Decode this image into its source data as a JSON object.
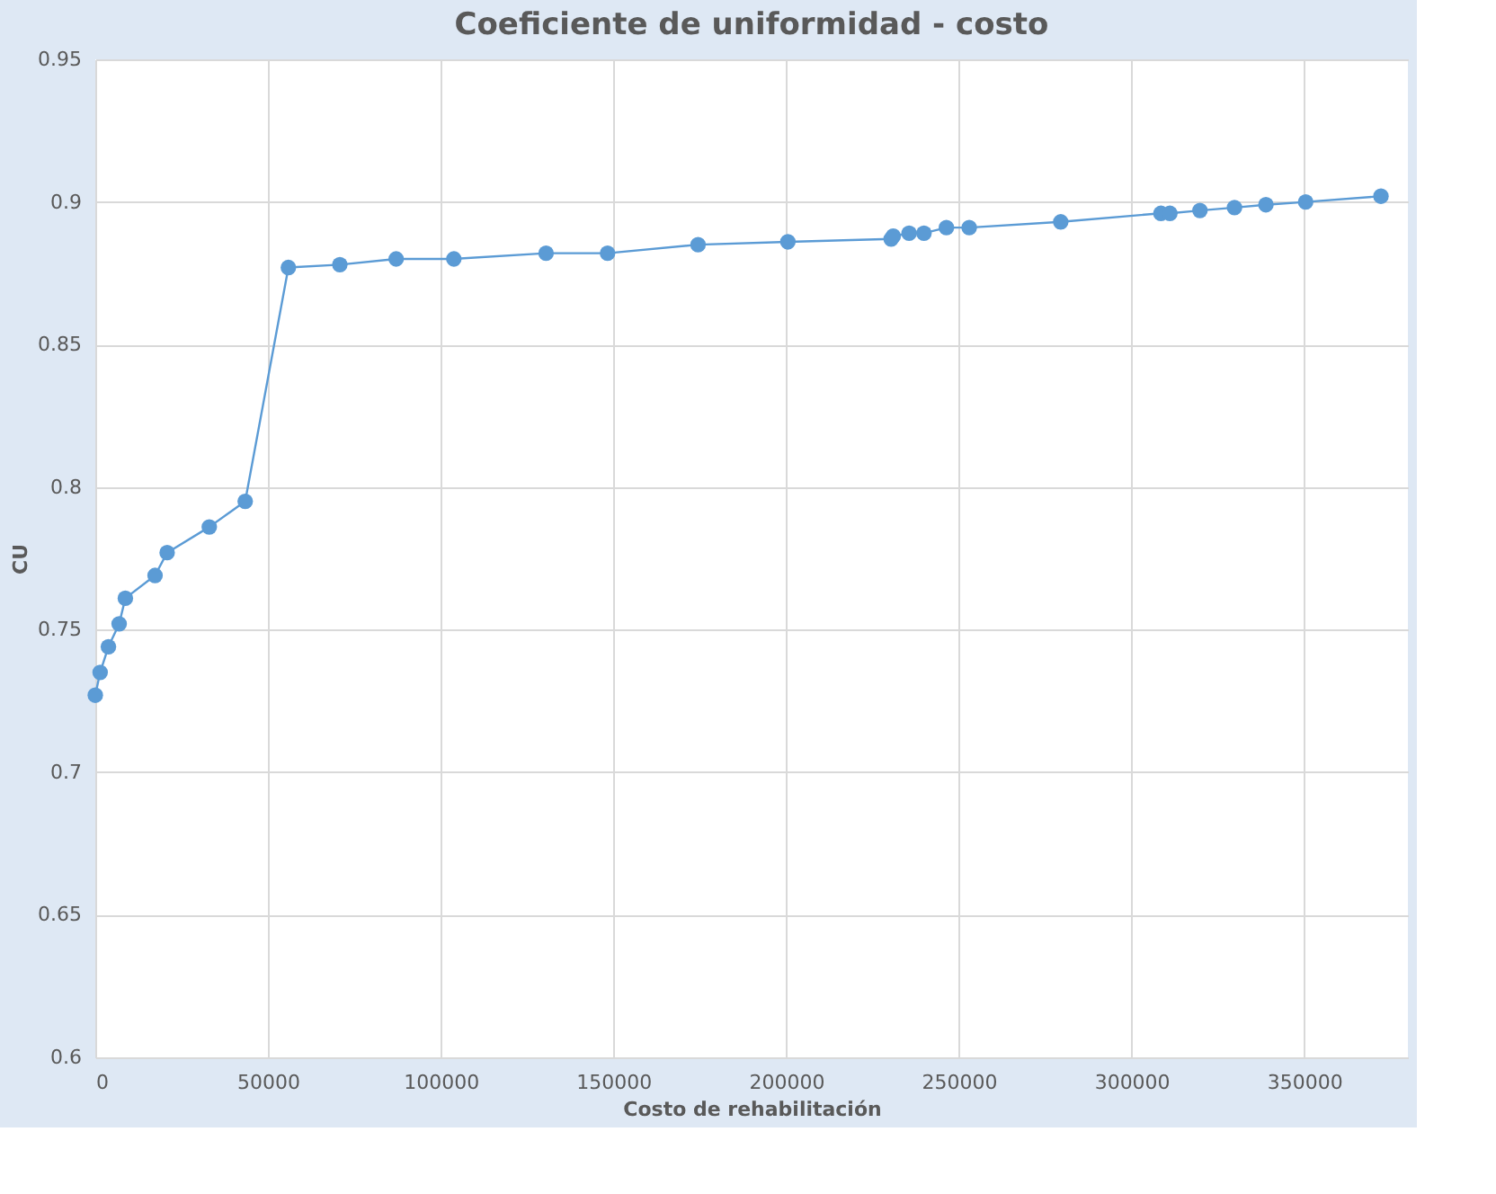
{
  "chart_data": {
    "type": "line",
    "title": "Coeficiente de uniformidad - costo",
    "xlabel": "Costo de rehabilitación",
    "ylabel": "CU",
    "x": [
      0,
      1400,
      3800,
      6900,
      8700,
      17300,
      20800,
      33000,
      43400,
      55900,
      70800,
      87100,
      103800,
      130500,
      148300,
      174500,
      200500,
      230400,
      231000,
      235600,
      239900,
      246400,
      253000,
      279500,
      308500,
      311100,
      319800,
      329800,
      338900,
      350400,
      372200
    ],
    "series": [
      {
        "color": "#5b9bd5",
        "values": [
          0.727,
          0.735,
          0.744,
          0.752,
          0.761,
          0.769,
          0.777,
          0.786,
          0.795,
          0.877,
          0.878,
          0.88,
          0.88,
          0.882,
          0.882,
          0.885,
          0.886,
          0.887,
          0.888,
          0.889,
          0.889,
          0.891,
          0.891,
          0.893,
          0.896,
          0.896,
          0.897,
          0.898,
          0.899,
          0.9,
          0.902
        ]
      }
    ],
    "xlim": [
      0,
      380000
    ],
    "xticks": [
      0,
      50000,
      100000,
      150000,
      200000,
      250000,
      300000,
      350000
    ],
    "ylim": [
      0.6,
      0.95
    ],
    "yticks": [
      0.6,
      0.65,
      0.7,
      0.75,
      0.8,
      0.85,
      0.9,
      0.95
    ],
    "grid": true,
    "marker": "circle",
    "line_style": "solid"
  }
}
